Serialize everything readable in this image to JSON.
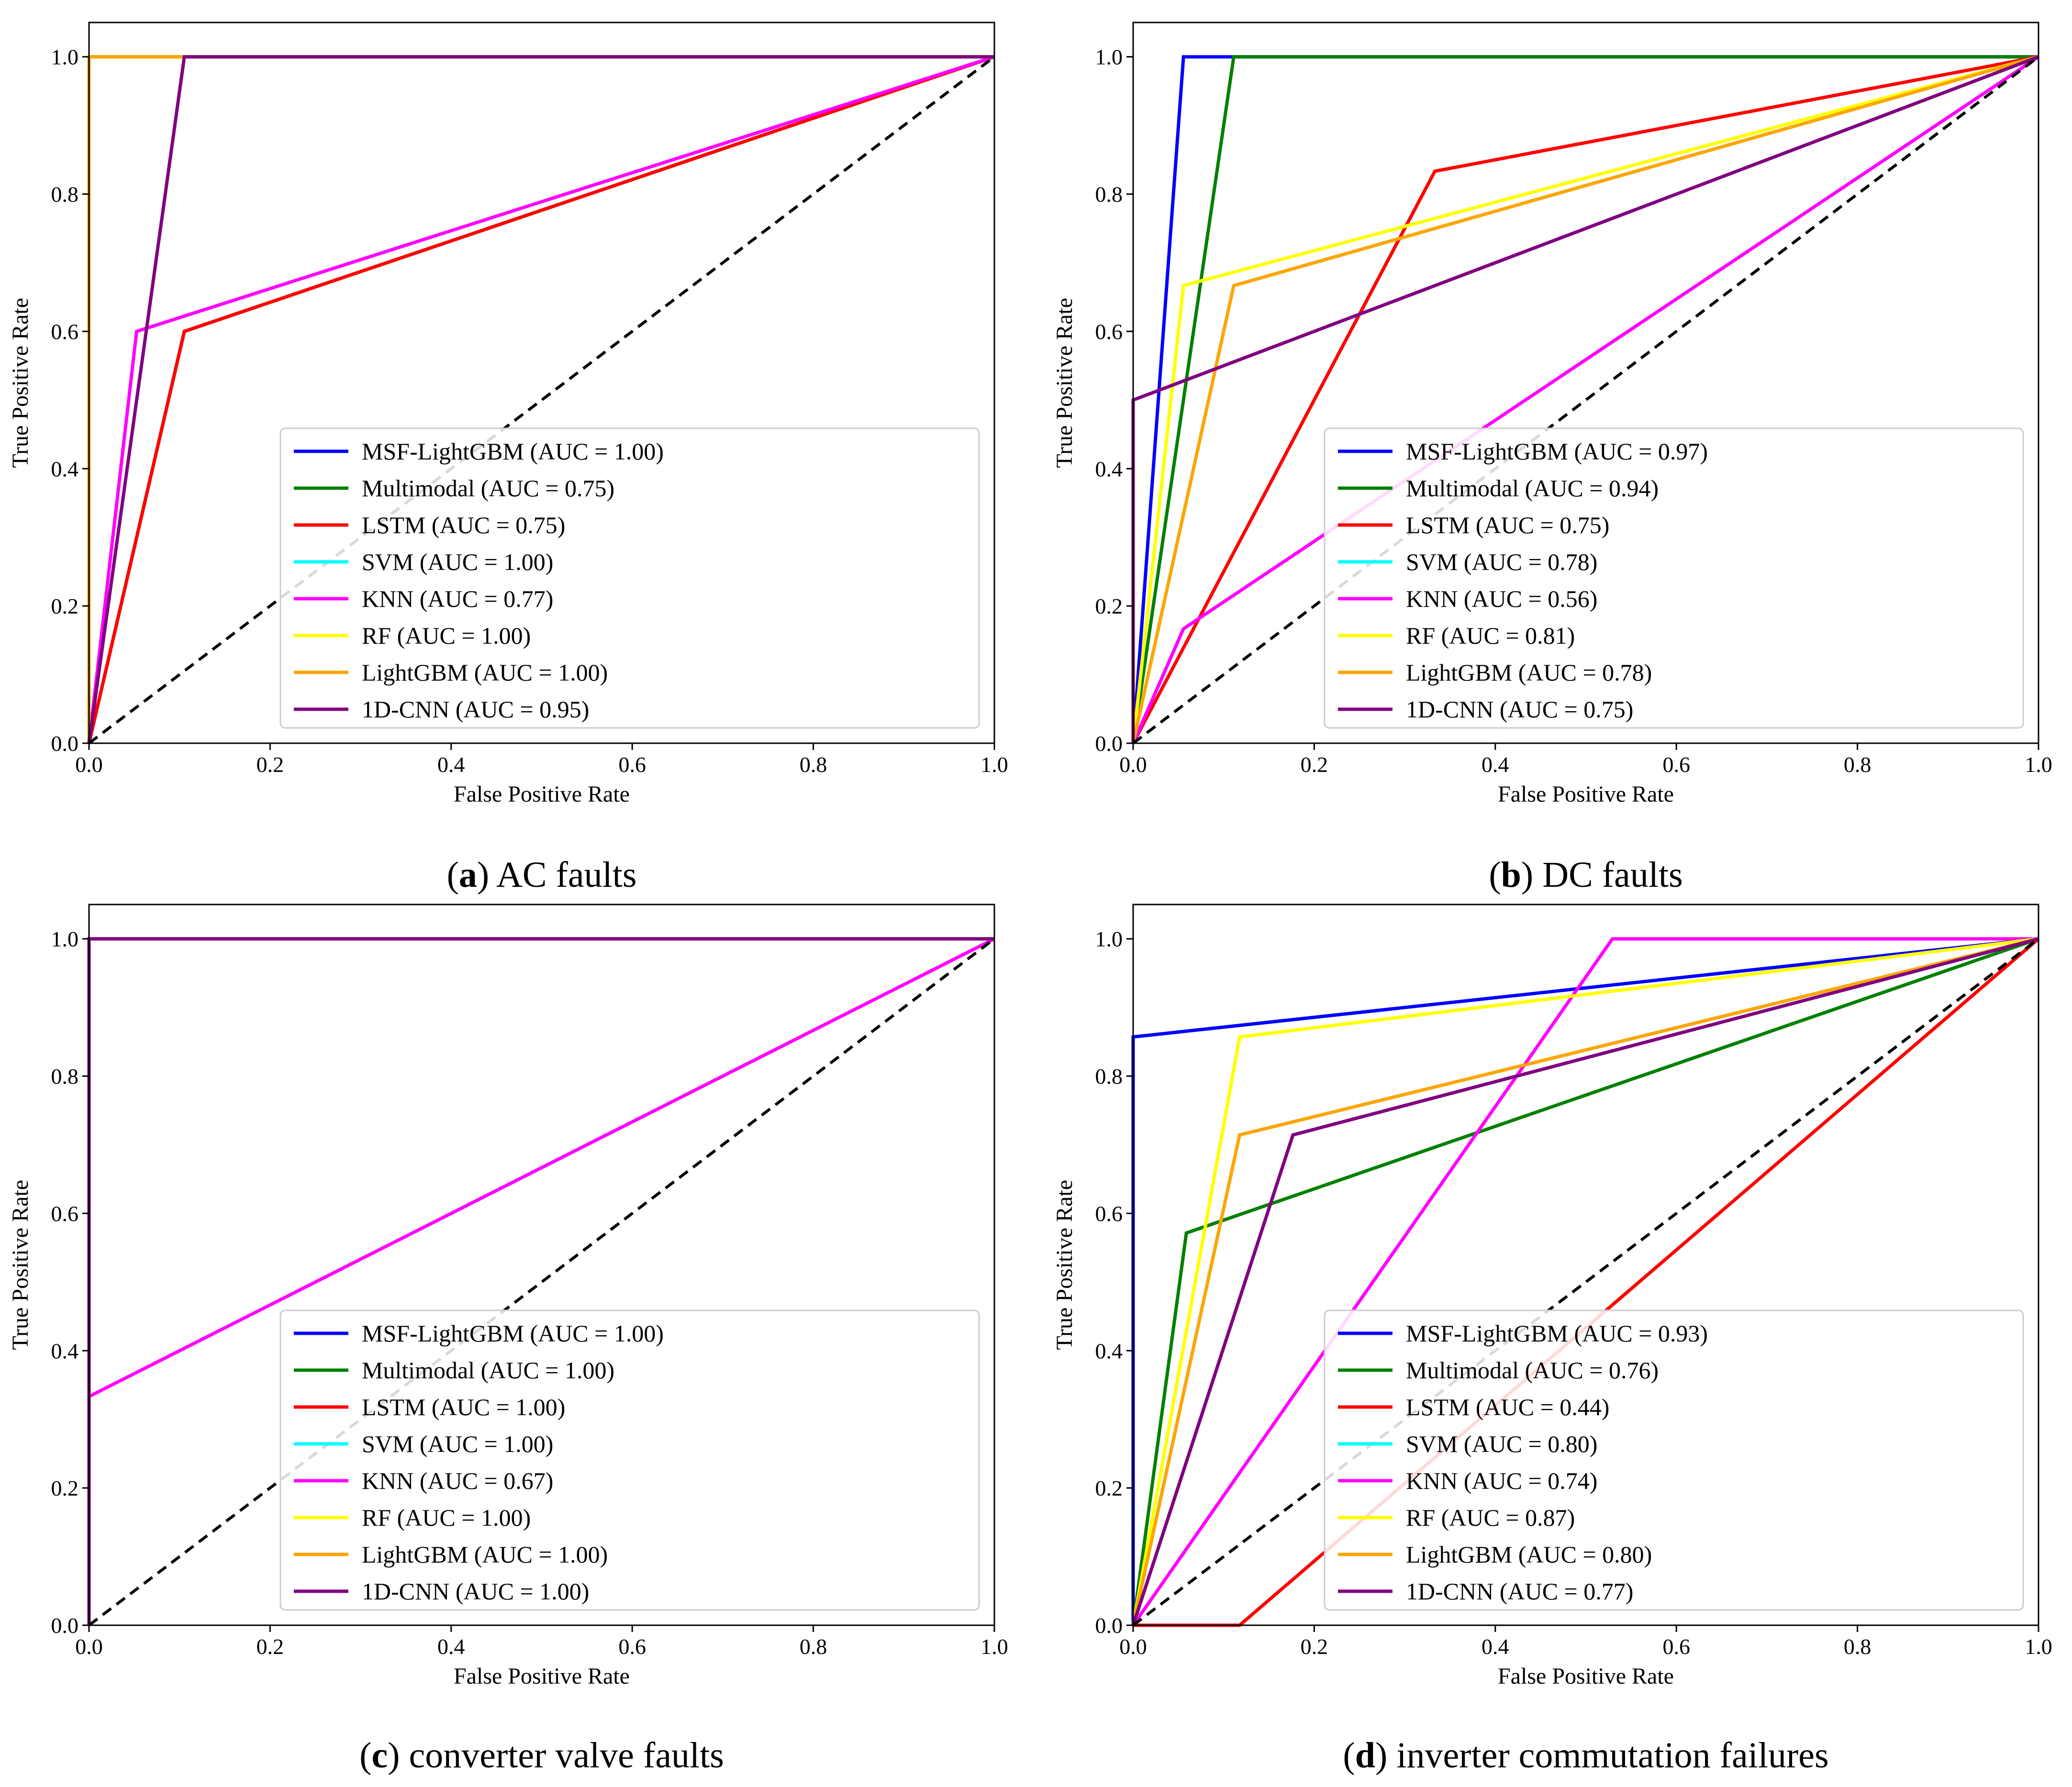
{
  "figure": {
    "colors": {
      "MSF-LightGBM": "#0000ff",
      "Multimodal": "#008000",
      "LSTM": "#ff0000",
      "SVM": "#00ffff",
      "KNN": "#ff00ff",
      "RF": "#ffff00",
      "LightGBM": "#ffa500",
      "1D-CNN": "#800080",
      "diagonal": "#000000"
    }
  },
  "chart_data": [
    {
      "type": "line",
      "caption_letter": "a",
      "caption_text": " AC faults",
      "xlabel": "False Positive Rate",
      "ylabel": "True Positive Rate",
      "xlim": [
        0,
        1.0
      ],
      "ylim": [
        0,
        1.05
      ],
      "xticks": [
        "0.0",
        "0.2",
        "0.4",
        "0.6",
        "0.8",
        "1.0"
      ],
      "yticks": [
        "0.0",
        "0.2",
        "0.4",
        "0.6",
        "0.8",
        "1.0"
      ],
      "legend_position": "lower-right",
      "series": [
        {
          "name": "MSF-LightGBM",
          "label": "MSF-LightGBM (AUC = 1.00)",
          "x": [
            0,
            0,
            1
          ],
          "y": [
            0,
            1,
            1
          ]
        },
        {
          "name": "Multimodal",
          "label": "Multimodal (AUC = 0.75)",
          "x": [
            0,
            0.1053,
            1
          ],
          "y": [
            0,
            0.6,
            1
          ]
        },
        {
          "name": "LSTM",
          "label": "LSTM (AUC = 0.75)",
          "x": [
            0,
            0.1053,
            1
          ],
          "y": [
            0,
            0.6,
            1
          ]
        },
        {
          "name": "SVM",
          "label": "SVM (AUC = 1.00)",
          "x": [
            0,
            0,
            1
          ],
          "y": [
            0,
            1,
            1
          ]
        },
        {
          "name": "KNN",
          "label": "KNN (AUC = 0.77)",
          "x": [
            0,
            0.0526,
            1
          ],
          "y": [
            0,
            0.6,
            1
          ]
        },
        {
          "name": "RF",
          "label": "RF (AUC = 1.00)",
          "x": [
            0,
            0,
            1
          ],
          "y": [
            0,
            1,
            1
          ]
        },
        {
          "name": "LightGBM",
          "label": "LightGBM (AUC = 1.00)",
          "x": [
            0,
            0,
            1
          ],
          "y": [
            0,
            1,
            1
          ]
        },
        {
          "name": "1D-CNN",
          "label": "1D-CNN (AUC = 0.95)",
          "x": [
            0,
            0.1053,
            1
          ],
          "y": [
            0,
            1,
            1
          ]
        }
      ]
    },
    {
      "type": "line",
      "caption_letter": "b",
      "caption_text": " DC faults",
      "xlabel": "False Positive Rate",
      "ylabel": "True Positive Rate",
      "xlim": [
        0,
        1.0
      ],
      "ylim": [
        0,
        1.05
      ],
      "xticks": [
        "0.0",
        "0.2",
        "0.4",
        "0.6",
        "0.8",
        "1.0"
      ],
      "yticks": [
        "0.0",
        "0.2",
        "0.4",
        "0.6",
        "0.8",
        "1.0"
      ],
      "legend_position": "lower-right",
      "series": [
        {
          "name": "MSF-LightGBM",
          "label": "MSF-LightGBM (AUC = 0.97)",
          "x": [
            0,
            0.0556,
            1
          ],
          "y": [
            0,
            1,
            1
          ]
        },
        {
          "name": "Multimodal",
          "label": "Multimodal (AUC = 0.94)",
          "x": [
            0,
            0.1111,
            1
          ],
          "y": [
            0,
            1,
            1
          ]
        },
        {
          "name": "LSTM",
          "label": "LSTM (AUC = 0.75)",
          "x": [
            0,
            0.3333,
            1
          ],
          "y": [
            0,
            0.8333,
            1
          ]
        },
        {
          "name": "SVM",
          "label": "SVM (AUC = 0.78)",
          "x": [
            0,
            0.1111,
            1
          ],
          "y": [
            0,
            0.6667,
            1
          ]
        },
        {
          "name": "KNN",
          "label": "KNN (AUC = 0.56)",
          "x": [
            0,
            0.0556,
            1
          ],
          "y": [
            0,
            0.1667,
            1
          ]
        },
        {
          "name": "RF",
          "label": "RF (AUC = 0.81)",
          "x": [
            0,
            0.0556,
            1
          ],
          "y": [
            0,
            0.6667,
            1
          ]
        },
        {
          "name": "LightGBM",
          "label": "LightGBM (AUC = 0.78)",
          "x": [
            0,
            0.1111,
            1
          ],
          "y": [
            0,
            0.6667,
            1
          ]
        },
        {
          "name": "1D-CNN",
          "label": "1D-CNN (AUC = 0.75)",
          "x": [
            0,
            0,
            1
          ],
          "y": [
            0,
            0.5,
            1
          ]
        }
      ]
    },
    {
      "type": "line",
      "caption_letter": "c",
      "caption_text": " converter valve faults",
      "xlabel": "False Positive Rate",
      "ylabel": "True Positive Rate",
      "xlim": [
        0,
        1.0
      ],
      "ylim": [
        0,
        1.05
      ],
      "xticks": [
        "0.0",
        "0.2",
        "0.4",
        "0.6",
        "0.8",
        "1.0"
      ],
      "yticks": [
        "0.0",
        "0.2",
        "0.4",
        "0.6",
        "0.8",
        "1.0"
      ],
      "legend_position": "lower-right",
      "series": [
        {
          "name": "MSF-LightGBM",
          "label": "MSF-LightGBM (AUC = 1.00)",
          "x": [
            0,
            0,
            1
          ],
          "y": [
            0,
            1,
            1
          ]
        },
        {
          "name": "Multimodal",
          "label": "Multimodal (AUC = 1.00)",
          "x": [
            0,
            0,
            1
          ],
          "y": [
            0,
            1,
            1
          ]
        },
        {
          "name": "LSTM",
          "label": "LSTM (AUC = 1.00)",
          "x": [
            0,
            0,
            1
          ],
          "y": [
            0,
            1,
            1
          ]
        },
        {
          "name": "SVM",
          "label": "SVM (AUC = 1.00)",
          "x": [
            0,
            0,
            1
          ],
          "y": [
            0,
            1,
            1
          ]
        },
        {
          "name": "KNN",
          "label": "KNN (AUC = 0.67)",
          "x": [
            0,
            0,
            1
          ],
          "y": [
            0,
            0.3333,
            1
          ]
        },
        {
          "name": "RF",
          "label": "RF (AUC = 1.00)",
          "x": [
            0,
            0,
            1
          ],
          "y": [
            0,
            1,
            1
          ]
        },
        {
          "name": "LightGBM",
          "label": "LightGBM (AUC = 1.00)",
          "x": [
            0,
            0,
            1
          ],
          "y": [
            0,
            1,
            1
          ]
        },
        {
          "name": "1D-CNN",
          "label": "1D-CNN (AUC = 1.00)",
          "x": [
            0,
            0,
            1
          ],
          "y": [
            0,
            1,
            1
          ]
        }
      ]
    },
    {
      "type": "line",
      "caption_letter": "d",
      "caption_text": " inverter commutation failures",
      "xlabel": "False Positive Rate",
      "ylabel": "True Positive Rate",
      "xlim": [
        0,
        1.0
      ],
      "ylim": [
        0,
        1.05
      ],
      "xticks": [
        "0.0",
        "0.2",
        "0.4",
        "0.6",
        "0.8",
        "1.0"
      ],
      "yticks": [
        "0.0",
        "0.2",
        "0.4",
        "0.6",
        "0.8",
        "1.0"
      ],
      "legend_position": "lower-right",
      "series": [
        {
          "name": "MSF-LightGBM",
          "label": "MSF-LightGBM (AUC = 0.93)",
          "x": [
            0,
            0,
            1
          ],
          "y": [
            0,
            0.8571,
            1
          ]
        },
        {
          "name": "Multimodal",
          "label": "Multimodal (AUC = 0.76)",
          "x": [
            0,
            0.0588,
            1
          ],
          "y": [
            0,
            0.5714,
            1
          ]
        },
        {
          "name": "LSTM",
          "label": "LSTM (AUC = 0.44)",
          "x": [
            0,
            0.1176,
            1
          ],
          "y": [
            0,
            0,
            1
          ]
        },
        {
          "name": "SVM",
          "label": "SVM (AUC = 0.80)",
          "x": [
            0,
            0.1176,
            1
          ],
          "y": [
            0,
            0.7143,
            1
          ]
        },
        {
          "name": "KNN",
          "label": "KNN (AUC = 0.74)",
          "x": [
            0,
            0.5294,
            1
          ],
          "y": [
            0,
            1,
            1
          ]
        },
        {
          "name": "RF",
          "label": "RF (AUC = 0.87)",
          "x": [
            0,
            0.1176,
            1
          ],
          "y": [
            0,
            0.8571,
            1
          ]
        },
        {
          "name": "LightGBM",
          "label": "LightGBM (AUC = 0.80)",
          "x": [
            0,
            0.1176,
            1
          ],
          "y": [
            0,
            0.7143,
            1
          ]
        },
        {
          "name": "1D-CNN",
          "label": "1D-CNN (AUC = 0.77)",
          "x": [
            0,
            0.1765,
            1
          ],
          "y": [
            0,
            0.7143,
            1
          ]
        }
      ]
    }
  ]
}
